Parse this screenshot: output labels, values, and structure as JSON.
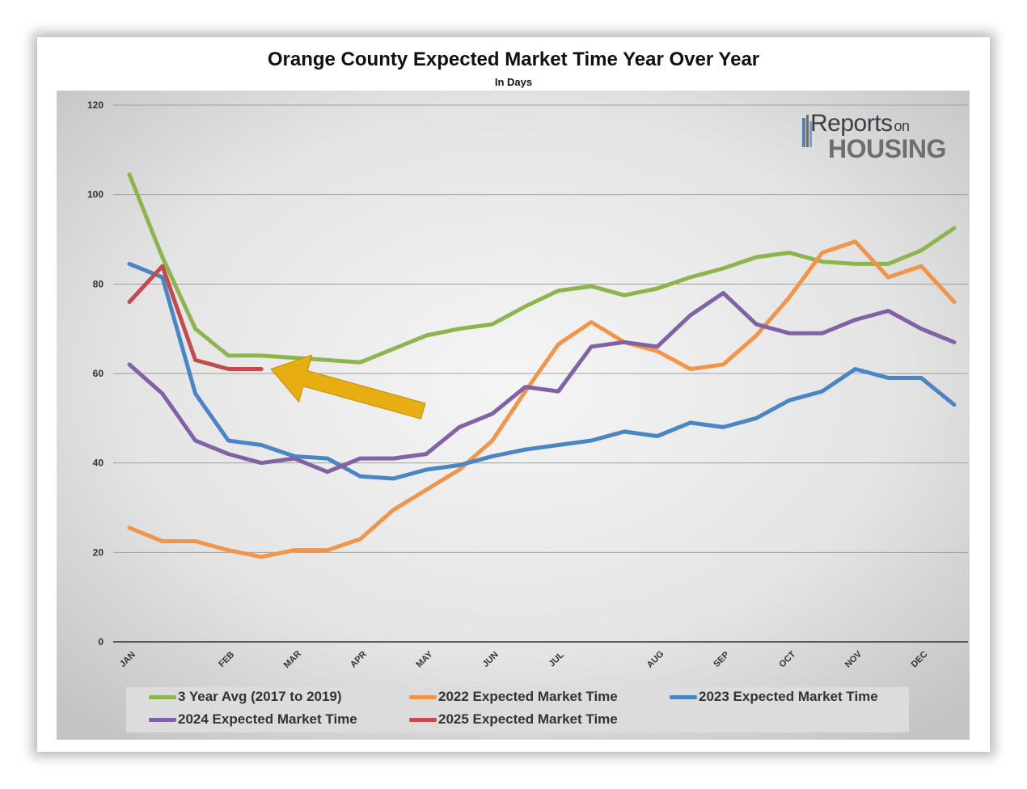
{
  "chart_data": {
    "type": "line",
    "title": "Orange County Expected Market Time Year Over Year",
    "subtitle": "In Days",
    "ylim": [
      0,
      120
    ],
    "yticks": [
      0,
      20,
      40,
      60,
      80,
      100,
      120
    ],
    "x_tick_labels": [
      {
        "label": "JAN",
        "x": 0
      },
      {
        "label": "FEB",
        "x": 3
      },
      {
        "label": "MAR",
        "x": 5
      },
      {
        "label": "APR",
        "x": 7
      },
      {
        "label": "MAY",
        "x": 9
      },
      {
        "label": "JUN",
        "x": 11
      },
      {
        "label": "JUL",
        "x": 13
      },
      {
        "label": "AUG",
        "x": 16
      },
      {
        "label": "SEP",
        "x": 18
      },
      {
        "label": "OCT",
        "x": 20
      },
      {
        "label": "NOV",
        "x": 22
      },
      {
        "label": "DEC",
        "x": 24
      }
    ],
    "grid": true,
    "legend_position": "bottom",
    "series": [
      {
        "name": "3 Year Avg (2017 to 2019)",
        "color": "#8cb54e",
        "values": [
          104.5,
          86,
          70,
          64,
          64,
          63.5,
          63,
          62.5,
          65.5,
          68.5,
          70,
          71,
          75,
          78.5,
          79.5,
          77.5,
          79,
          81.5,
          83.5,
          86,
          87,
          85,
          84.5,
          84.5,
          87.5,
          92.5
        ]
      },
      {
        "name": "2022 Expected Market Time",
        "color": "#f0954a",
        "values": [
          25.5,
          22.5,
          22.5,
          20.5,
          19,
          20.5,
          20.5,
          23,
          29.5,
          34,
          38.5,
          45,
          56,
          66.5,
          71.5,
          67,
          65,
          61,
          62,
          68.5,
          77,
          87,
          89.5,
          81.5,
          84,
          76
        ]
      },
      {
        "name": "2023 Expected Market Time",
        "color": "#4a86c5",
        "values": [
          84.5,
          81.5,
          55.5,
          45,
          44,
          41.5,
          41,
          37,
          36.5,
          38.5,
          39.5,
          41.5,
          43,
          44,
          45,
          47,
          46,
          49,
          48,
          50,
          54,
          56,
          61,
          59,
          59,
          53
        ]
      },
      {
        "name": "2024 Expected Market Time",
        "color": "#8162a5",
        "values": [
          62,
          55.5,
          45,
          42,
          40,
          41,
          38,
          41,
          41,
          42,
          48,
          51,
          57,
          56,
          66,
          67,
          66,
          73,
          78,
          71,
          69,
          69,
          72,
          74,
          70,
          67
        ]
      },
      {
        "name": "2025 Expected Market Time",
        "color": "#c44b4b",
        "values": [
          76,
          84,
          63,
          61,
          61
        ]
      }
    ],
    "annotation": {
      "type": "arrow",
      "color": "#e8ad10",
      "points_to": {
        "x": 4,
        "y": 61
      }
    }
  },
  "logo": {
    "brand_reports": "Reports",
    "brand_on": "on",
    "brand_housing": "HOUSING"
  }
}
